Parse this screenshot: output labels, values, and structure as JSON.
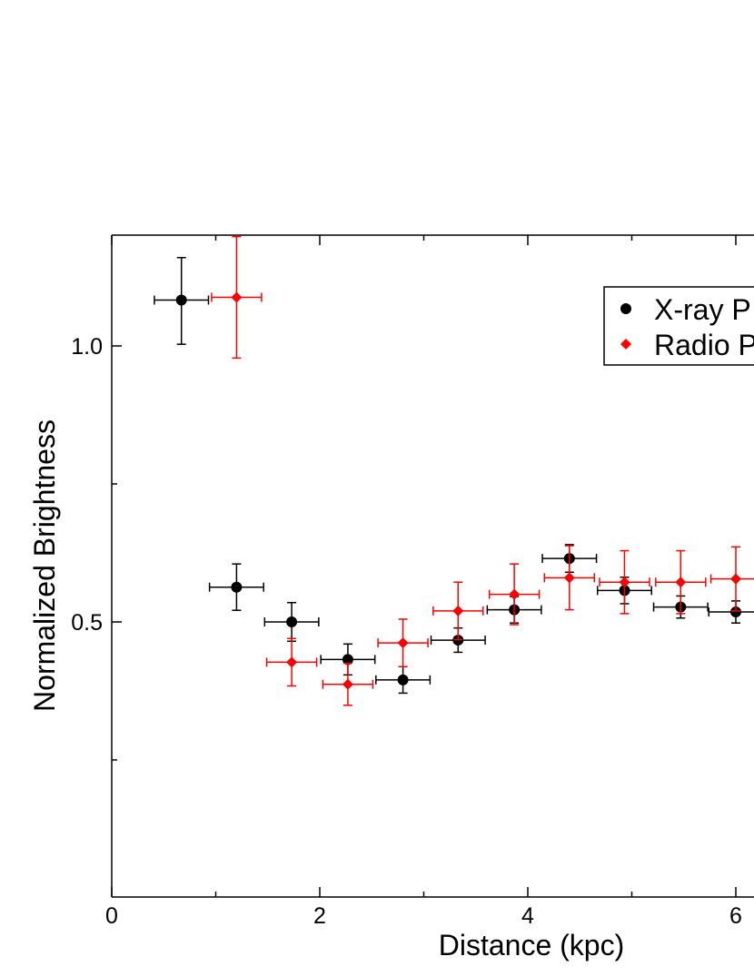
{
  "chart_data": {
    "type": "scatter",
    "title": "",
    "xlabel": "Distance (kpc)",
    "ylabel": "Normalized Brightness",
    "xlim": [
      0,
      6.3
    ],
    "ylim": [
      0.0,
      1.2
    ],
    "x_ticks": [
      0,
      2,
      4,
      6
    ],
    "x_tick_labels": [
      "0",
      "2",
      "4",
      "6"
    ],
    "y_ticks": [
      0.5,
      1.0
    ],
    "y_tick_labels": [
      "0.5",
      "1.0"
    ],
    "grid": false,
    "legend_position": "top-right",
    "series": [
      {
        "name": "X-ray P",
        "color": "#000000",
        "marker": "circle",
        "points": [
          {
            "x": 0.67,
            "y": 1.083,
            "xerr": 0.26,
            "yerr_up": 0.077,
            "yerr_down": 0.08
          },
          {
            "x": 1.2,
            "y": 0.563,
            "xerr": 0.26,
            "yerr_up": 0.042,
            "yerr_down": 0.042
          },
          {
            "x": 1.73,
            "y": 0.5,
            "xerr": 0.26,
            "yerr_up": 0.035,
            "yerr_down": 0.035
          },
          {
            "x": 2.27,
            "y": 0.432,
            "xerr": 0.26,
            "yerr_up": 0.028,
            "yerr_down": 0.028
          },
          {
            "x": 2.8,
            "y": 0.395,
            "xerr": 0.26,
            "yerr_up": 0.024,
            "yerr_down": 0.024
          },
          {
            "x": 3.33,
            "y": 0.467,
            "xerr": 0.26,
            "yerr_up": 0.022,
            "yerr_down": 0.022
          },
          {
            "x": 3.87,
            "y": 0.522,
            "xerr": 0.26,
            "yerr_up": 0.024,
            "yerr_down": 0.024
          },
          {
            "x": 4.4,
            "y": 0.615,
            "xerr": 0.26,
            "yerr_up": 0.025,
            "yerr_down": 0.025
          },
          {
            "x": 4.93,
            "y": 0.557,
            "xerr": 0.26,
            "yerr_up": 0.024,
            "yerr_down": 0.024
          },
          {
            "x": 5.47,
            "y": 0.527,
            "xerr": 0.26,
            "yerr_up": 0.02,
            "yerr_down": 0.02
          },
          {
            "x": 6.0,
            "y": 0.518,
            "xerr": 0.26,
            "yerr_up": 0.02,
            "yerr_down": 0.02
          }
        ]
      },
      {
        "name": "Radio P",
        "color": "#ff0000",
        "marker": "diamond",
        "points": [
          {
            "x": 1.2,
            "y": 1.088,
            "xerr": 0.24,
            "yerr_up": 0.11,
            "yerr_down": 0.11
          },
          {
            "x": 1.73,
            "y": 0.427,
            "xerr": 0.24,
            "yerr_up": 0.043,
            "yerr_down": 0.043
          },
          {
            "x": 2.27,
            "y": 0.387,
            "xerr": 0.24,
            "yerr_up": 0.038,
            "yerr_down": 0.038
          },
          {
            "x": 2.8,
            "y": 0.462,
            "xerr": 0.24,
            "yerr_up": 0.043,
            "yerr_down": 0.043
          },
          {
            "x": 3.33,
            "y": 0.52,
            "xerr": 0.24,
            "yerr_up": 0.052,
            "yerr_down": 0.052
          },
          {
            "x": 3.87,
            "y": 0.55,
            "xerr": 0.24,
            "yerr_up": 0.055,
            "yerr_down": 0.055
          },
          {
            "x": 4.4,
            "y": 0.58,
            "xerr": 0.24,
            "yerr_up": 0.058,
            "yerr_down": 0.058
          },
          {
            "x": 4.93,
            "y": 0.572,
            "xerr": 0.24,
            "yerr_up": 0.057,
            "yerr_down": 0.057
          },
          {
            "x": 5.47,
            "y": 0.572,
            "xerr": 0.24,
            "yerr_up": 0.057,
            "yerr_down": 0.057
          },
          {
            "x": 6.0,
            "y": 0.578,
            "xerr": 0.24,
            "yerr_up": 0.058,
            "yerr_down": 0.058
          }
        ]
      }
    ]
  }
}
